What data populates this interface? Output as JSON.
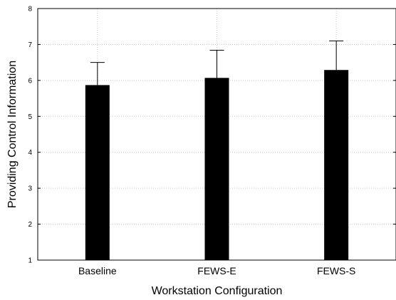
{
  "chart_data": {
    "type": "bar",
    "categories": [
      "Baseline",
      "FEWS-E",
      "FEWS-S"
    ],
    "values": [
      5.87,
      6.07,
      6.29
    ],
    "error_upper": [
      6.5,
      6.84,
      7.1
    ],
    "xlabel": "Workstation Configuration",
    "ylabel": "Providing Control Information",
    "ylim": [
      1,
      8
    ],
    "yticks": [
      "1",
      "2",
      "3",
      "4",
      "5",
      "6",
      "7",
      "8"
    ],
    "grid": true,
    "bar_color": "#000000",
    "grid_color": "#c8c8c8"
  }
}
